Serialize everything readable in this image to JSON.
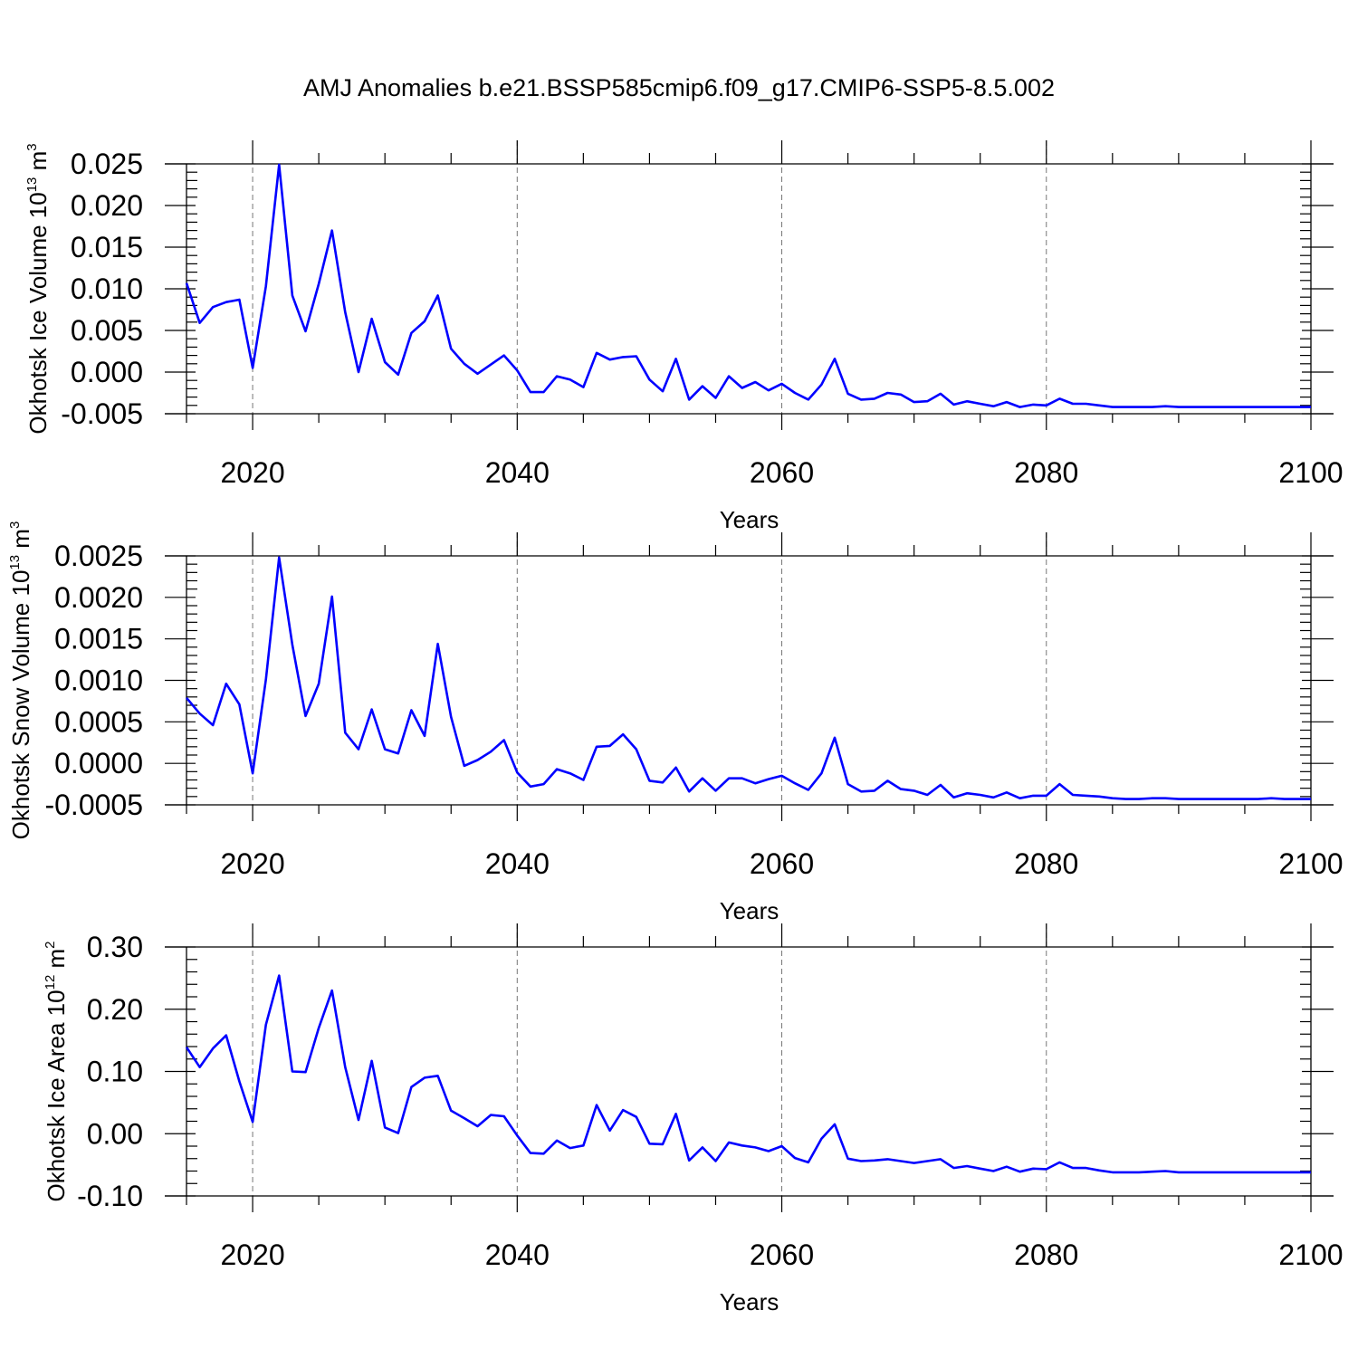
{
  "figure_title": "AMJ Anomalies b.e21.BSSP585cmip6.f09_g17.CMIP6-SSP5-8.5.002",
  "line_color": "#0000ff",
  "chart_data": [
    {
      "type": "line",
      "title": "",
      "xlabel": "Years",
      "ylabel_main": "Okhotsk Ice Volume 10",
      "ylabel_exp": "13",
      "ylabel_unit": " m",
      "ylabel_unit_exp": "3",
      "xlim": [
        2015,
        2100
      ],
      "ylim": [
        -0.005,
        0.025
      ],
      "xticks": [
        2020,
        2040,
        2060,
        2080,
        2100
      ],
      "xtick_labels": [
        "2020",
        "2040",
        "2060",
        "2080",
        "2100"
      ],
      "yticks": [
        -0.005,
        0.0,
        0.005,
        0.01,
        0.015,
        0.02,
        0.025
      ],
      "ytick_labels": [
        "-0.005",
        "0.000",
        "0.005",
        "0.010",
        "0.015",
        "0.020",
        "0.025"
      ],
      "grid": "vertical dashed at major x ticks",
      "x": [
        2015,
        2016,
        2017,
        2018,
        2019,
        2020,
        2021,
        2022,
        2023,
        2024,
        2025,
        2026,
        2027,
        2028,
        2029,
        2030,
        2031,
        2032,
        2033,
        2034,
        2035,
        2036,
        2037,
        2038,
        2039,
        2040,
        2041,
        2042,
        2043,
        2044,
        2045,
        2046,
        2047,
        2048,
        2049,
        2050,
        2051,
        2052,
        2053,
        2054,
        2055,
        2056,
        2057,
        2058,
        2059,
        2060,
        2061,
        2062,
        2063,
        2064,
        2065,
        2066,
        2067,
        2068,
        2069,
        2070,
        2071,
        2072,
        2073,
        2074,
        2075,
        2076,
        2077,
        2078,
        2079,
        2080,
        2081,
        2082,
        2083,
        2084,
        2085,
        2086,
        2087,
        2088,
        2089,
        2090,
        2091,
        2092,
        2093,
        2094,
        2095,
        2096,
        2097,
        2098,
        2099,
        2100
      ],
      "values": [
        0.0107,
        0.0059,
        0.0078,
        0.0084,
        0.0087,
        0.0005,
        0.0103,
        0.0249,
        0.0092,
        0.0049,
        0.0106,
        0.017,
        0.0072,
        0.0,
        0.0064,
        0.0012,
        -0.0003,
        0.0047,
        0.0061,
        0.0092,
        0.0028,
        0.001,
        -0.0002,
        0.0009,
        0.002,
        0.0002,
        -0.0024,
        -0.0024,
        -0.0005,
        -0.0009,
        -0.0018,
        0.0023,
        0.0015,
        0.0018,
        0.0019,
        -0.0009,
        -0.0023,
        0.0016,
        -0.0033,
        -0.0017,
        -0.0031,
        -0.0005,
        -0.0019,
        -0.0012,
        -0.0022,
        -0.0014,
        -0.0025,
        -0.0033,
        -0.0015,
        0.0016,
        -0.0026,
        -0.0033,
        -0.0032,
        -0.0025,
        -0.0027,
        -0.0036,
        -0.0035,
        -0.0026,
        -0.0039,
        -0.0035,
        -0.0038,
        -0.0041,
        -0.0036,
        -0.0042,
        -0.0039,
        -0.004,
        -0.0032,
        -0.0038,
        -0.0038,
        -0.004,
        -0.0042,
        -0.0042,
        -0.0042,
        -0.0042,
        -0.0041,
        -0.0042,
        -0.0042,
        -0.0042,
        -0.0042,
        -0.0042,
        -0.0042,
        -0.0042,
        -0.0042,
        -0.0042,
        -0.0042,
        -0.0042
      ]
    },
    {
      "type": "line",
      "title": "",
      "xlabel": "Years",
      "ylabel_main": "Okhotsk Snow Volume 10",
      "ylabel_exp": "13",
      "ylabel_unit": " m",
      "ylabel_unit_exp": "3",
      "xlim": [
        2015,
        2100
      ],
      "ylim": [
        -0.0005,
        0.0025
      ],
      "xticks": [
        2020,
        2040,
        2060,
        2080,
        2100
      ],
      "xtick_labels": [
        "2020",
        "2040",
        "2060",
        "2080",
        "2100"
      ],
      "yticks": [
        -0.0005,
        0.0,
        0.0005,
        0.001,
        0.0015,
        0.002,
        0.0025
      ],
      "ytick_labels": [
        "-0.0005",
        "0.0000",
        "0.0005",
        "0.0010",
        "0.0015",
        "0.0020",
        "0.0025"
      ],
      "grid": "vertical dashed at major x ticks",
      "x": [
        2015,
        2016,
        2017,
        2018,
        2019,
        2020,
        2021,
        2022,
        2023,
        2024,
        2025,
        2026,
        2027,
        2028,
        2029,
        2030,
        2031,
        2032,
        2033,
        2034,
        2035,
        2036,
        2037,
        2038,
        2039,
        2040,
        2041,
        2042,
        2043,
        2044,
        2045,
        2046,
        2047,
        2048,
        2049,
        2050,
        2051,
        2052,
        2053,
        2054,
        2055,
        2056,
        2057,
        2058,
        2059,
        2060,
        2061,
        2062,
        2063,
        2064,
        2065,
        2066,
        2067,
        2068,
        2069,
        2070,
        2071,
        2072,
        2073,
        2074,
        2075,
        2076,
        2077,
        2078,
        2079,
        2080,
        2081,
        2082,
        2083,
        2084,
        2085,
        2086,
        2087,
        2088,
        2089,
        2090,
        2091,
        2092,
        2093,
        2094,
        2095,
        2096,
        2097,
        2098,
        2099,
        2100
      ],
      "values": [
        0.00079,
        0.0006,
        0.00046,
        0.00096,
        0.00071,
        -0.00012,
        0.00101,
        0.00248,
        0.00143,
        0.00057,
        0.00096,
        0.00201,
        0.00037,
        0.00017,
        0.00065,
        0.00017,
        0.00012,
        0.00064,
        0.00033,
        0.00144,
        0.00056,
        -3e-05,
        4e-05,
        0.00014,
        0.00028,
        -0.00011,
        -0.00028,
        -0.00025,
        -7e-05,
        -0.00012,
        -0.0002,
        0.0002,
        0.00021,
        0.00035,
        0.00017,
        -0.00021,
        -0.00023,
        -5e-05,
        -0.00034,
        -0.00018,
        -0.00033,
        -0.00018,
        -0.00018,
        -0.00024,
        -0.00019,
        -0.00015,
        -0.00024,
        -0.00032,
        -0.00012,
        0.00031,
        -0.00025,
        -0.00034,
        -0.00033,
        -0.00021,
        -0.00031,
        -0.00033,
        -0.00038,
        -0.00026,
        -0.00041,
        -0.00036,
        -0.00038,
        -0.00041,
        -0.00035,
        -0.00042,
        -0.00039,
        -0.00039,
        -0.00025,
        -0.00038,
        -0.00039,
        -0.0004,
        -0.00042,
        -0.00043,
        -0.00043,
        -0.00042,
        -0.00042,
        -0.00043,
        -0.00043,
        -0.00043,
        -0.00043,
        -0.00043,
        -0.00043,
        -0.00043,
        -0.00042,
        -0.00043,
        -0.00043,
        -0.00043
      ]
    },
    {
      "type": "line",
      "title": "",
      "xlabel": "Years",
      "ylabel_main": "Okhotsk Ice Area 10",
      "ylabel_exp": "12",
      "ylabel_unit": " m",
      "ylabel_unit_exp": "2",
      "xlim": [
        2015,
        2100
      ],
      "ylim": [
        -0.1,
        0.3
      ],
      "xticks": [
        2020,
        2040,
        2060,
        2080,
        2100
      ],
      "xtick_labels": [
        "2020",
        "2040",
        "2060",
        "2080",
        "2100"
      ],
      "yticks": [
        -0.1,
        0.0,
        0.1,
        0.2,
        0.3
      ],
      "ytick_labels": [
        "-0.10",
        "0.00",
        "0.10",
        "0.20",
        "0.30"
      ],
      "grid": "vertical dashed at major x ticks",
      "x": [
        2015,
        2016,
        2017,
        2018,
        2019,
        2020,
        2021,
        2022,
        2023,
        2024,
        2025,
        2026,
        2027,
        2028,
        2029,
        2030,
        2031,
        2032,
        2033,
        2034,
        2035,
        2036,
        2037,
        2038,
        2039,
        2040,
        2041,
        2042,
        2043,
        2044,
        2045,
        2046,
        2047,
        2048,
        2049,
        2050,
        2051,
        2052,
        2053,
        2054,
        2055,
        2056,
        2057,
        2058,
        2059,
        2060,
        2061,
        2062,
        2063,
        2064,
        2065,
        2066,
        2067,
        2068,
        2069,
        2070,
        2071,
        2072,
        2073,
        2074,
        2075,
        2076,
        2077,
        2078,
        2079,
        2080,
        2081,
        2082,
        2083,
        2084,
        2085,
        2086,
        2087,
        2088,
        2089,
        2090,
        2091,
        2092,
        2093,
        2094,
        2095,
        2096,
        2097,
        2098,
        2099,
        2100
      ],
      "values": [
        0.139,
        0.107,
        0.137,
        0.158,
        0.084,
        0.019,
        0.175,
        0.254,
        0.1,
        0.099,
        0.17,
        0.23,
        0.107,
        0.022,
        0.117,
        0.01,
        0.001,
        0.075,
        0.09,
        0.093,
        0.037,
        0.025,
        0.012,
        0.03,
        0.028,
        -0.003,
        -0.031,
        -0.032,
        -0.011,
        -0.023,
        -0.019,
        0.046,
        0.005,
        0.038,
        0.027,
        -0.016,
        -0.017,
        0.032,
        -0.043,
        -0.022,
        -0.044,
        -0.014,
        -0.019,
        -0.022,
        -0.028,
        -0.02,
        -0.039,
        -0.046,
        -0.008,
        0.015,
        -0.04,
        -0.044,
        -0.043,
        -0.041,
        -0.044,
        -0.047,
        -0.044,
        -0.041,
        -0.055,
        -0.052,
        -0.056,
        -0.06,
        -0.053,
        -0.061,
        -0.056,
        -0.057,
        -0.046,
        -0.055,
        -0.055,
        -0.059,
        -0.062,
        -0.062,
        -0.062,
        -0.061,
        -0.06,
        -0.062,
        -0.062,
        -0.062,
        -0.062,
        -0.062,
        -0.062,
        -0.062,
        -0.062,
        -0.062,
        -0.062,
        -0.062
      ]
    }
  ]
}
